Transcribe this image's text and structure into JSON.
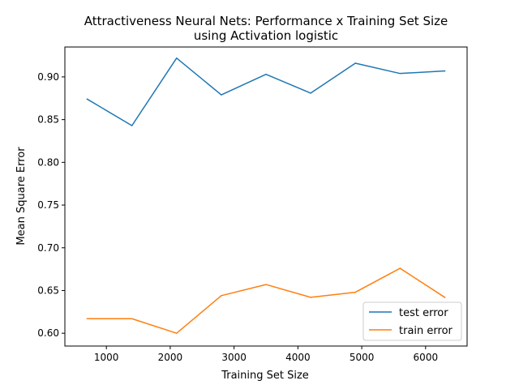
{
  "chart_data": {
    "type": "line",
    "title_line1": "Attractiveness Neural Nets: Performance x Training Set Size",
    "title_line2": "using Activation logistic",
    "xlabel": "Training Set Size",
    "ylabel": "Mean Square Error",
    "xlim": [
      350,
      6650
    ],
    "ylim": [
      0.585,
      0.935
    ],
    "x_ticks": [
      1000,
      2000,
      3000,
      4000,
      5000,
      6000
    ],
    "y_ticks": [
      0.6,
      0.65,
      0.7,
      0.75,
      0.8,
      0.85,
      0.9
    ],
    "x_tick_labels": [
      "1000",
      "2000",
      "3000",
      "4000",
      "5000",
      "6000"
    ],
    "y_tick_labels": [
      "0.60",
      "0.65",
      "0.70",
      "0.75",
      "0.80",
      "0.85",
      "0.90"
    ],
    "grid": false,
    "legend_position": "lower-right",
    "x": [
      700,
      1400,
      2100,
      2800,
      3500,
      4200,
      4900,
      5600,
      6300
    ],
    "series": [
      {
        "name": "test error",
        "color": "#1f77b4",
        "values": [
          0.874,
          0.843,
          0.922,
          0.879,
          0.903,
          0.881,
          0.916,
          0.904,
          0.907
        ]
      },
      {
        "name": "train error",
        "color": "#ff7f0e",
        "values": [
          0.617,
          0.617,
          0.6,
          0.644,
          0.657,
          0.642,
          0.648,
          0.676,
          0.642
        ]
      }
    ]
  }
}
